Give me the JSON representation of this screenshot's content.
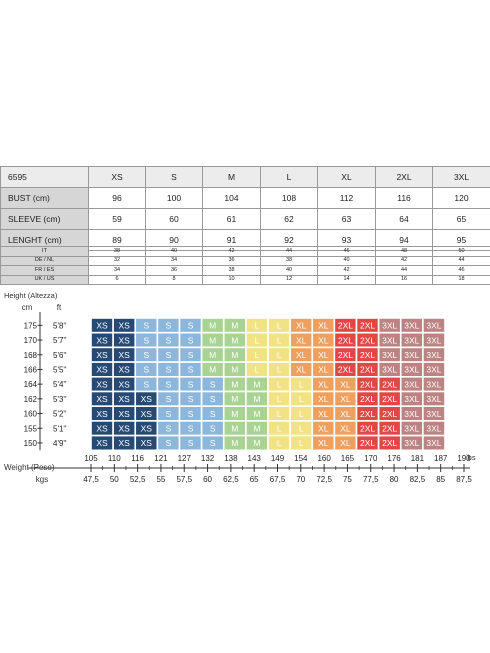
{
  "measurements": {
    "header": [
      "6595",
      "XS",
      "S",
      "M",
      "L",
      "XL",
      "2XL",
      "3XL"
    ],
    "rows": [
      [
        "BUST (cm)",
        "96",
        "100",
        "104",
        "108",
        "112",
        "116",
        "120"
      ],
      [
        "SLEEVE (cm)",
        "59",
        "60",
        "61",
        "62",
        "63",
        "64",
        "65"
      ],
      [
        "LENGHT (cm)",
        "89",
        "90",
        "91",
        "92",
        "93",
        "94",
        "95"
      ]
    ]
  },
  "conversion": {
    "rows": [
      [
        "IT",
        "38",
        "40",
        "42",
        "44",
        "46",
        "48",
        "50"
      ],
      [
        "DE / NL",
        "32",
        "34",
        "36",
        "38",
        "40",
        "42",
        "44"
      ],
      [
        "FR / ES",
        "34",
        "36",
        "38",
        "40",
        "42",
        "44",
        "46"
      ],
      [
        "UK / US",
        "6",
        "8",
        "10",
        "12",
        "14",
        "16",
        "18"
      ]
    ]
  },
  "chart": {
    "title": "Height (Altezza)",
    "cm_label": "cm",
    "ft_label": "ft",
    "weight_label": "Weight (Peso)",
    "ibs_label": "ibs",
    "kgs_label": "kgs",
    "cm_ticks": [
      "175",
      "170",
      "168",
      "166",
      "164",
      "162",
      "160",
      "155",
      "150"
    ],
    "ft_ticks": [
      "5'8''",
      "5'7''",
      "5'6''",
      "5'5''",
      "5'4''",
      "5'3''",
      "5'2''",
      "5'1''",
      "4'9''"
    ],
    "ibs_ticks": [
      "105",
      "110",
      "116",
      "121",
      "127",
      "132",
      "138",
      "143",
      "149",
      "154",
      "160",
      "165",
      "170",
      "176",
      "181",
      "187",
      "193"
    ],
    "kgs_ticks": [
      "47,5",
      "50",
      "52,5",
      "55",
      "57,5",
      "60",
      "62,5",
      "65",
      "67,5",
      "70",
      "72,5",
      "75",
      "77,5",
      "80",
      "82,5",
      "85",
      "87,5"
    ],
    "grid": [
      [
        "XS",
        "XS",
        "S",
        "S",
        "S",
        "M",
        "M",
        "L",
        "L",
        "XL",
        "XL",
        "2XL",
        "2XL",
        "3XL",
        "3XL",
        "3XL"
      ],
      [
        "XS",
        "XS",
        "S",
        "S",
        "S",
        "M",
        "M",
        "L",
        "L",
        "XL",
        "XL",
        "2XL",
        "2XL",
        "3XL",
        "3XL",
        "3XL"
      ],
      [
        "XS",
        "XS",
        "S",
        "S",
        "S",
        "M",
        "M",
        "L",
        "L",
        "XL",
        "XL",
        "2XL",
        "2XL",
        "3XL",
        "3XL",
        "3XL"
      ],
      [
        "XS",
        "XS",
        "S",
        "S",
        "S",
        "M",
        "M",
        "L",
        "L",
        "XL",
        "XL",
        "2XL",
        "2XL",
        "3XL",
        "3XL",
        "3XL"
      ],
      [
        "XS",
        "XS",
        "S",
        "S",
        "S",
        "S",
        "M",
        "M",
        "L",
        "L",
        "XL",
        "XL",
        "2XL",
        "2XL",
        "3XL",
        "3XL"
      ],
      [
        "XS",
        "XS",
        "XS",
        "S",
        "S",
        "S",
        "M",
        "M",
        "L",
        "L",
        "XL",
        "XL",
        "2XL",
        "2XL",
        "3XL",
        "3XL"
      ],
      [
        "XS",
        "XS",
        "XS",
        "S",
        "S",
        "S",
        "M",
        "M",
        "L",
        "L",
        "XL",
        "XL",
        "2XL",
        "2XL",
        "3XL",
        "3XL"
      ],
      [
        "XS",
        "XS",
        "XS",
        "S",
        "S",
        "S",
        "M",
        "M",
        "L",
        "L",
        "XL",
        "XL",
        "2XL",
        "2XL",
        "3XL",
        "3XL"
      ],
      [
        "XS",
        "XS",
        "XS",
        "S",
        "S",
        "S",
        "M",
        "M",
        "L",
        "L",
        "XL",
        "XL",
        "2XL",
        "2XL",
        "3XL",
        "3XL"
      ]
    ],
    "colors": {
      "XS": "#274a75",
      "S": "#8cb6dc",
      "M": "#a9d392",
      "L": "#f1e384",
      "XL": "#f0a05e",
      "2XL": "#df4846",
      "3XL": "#bd8383"
    }
  }
}
